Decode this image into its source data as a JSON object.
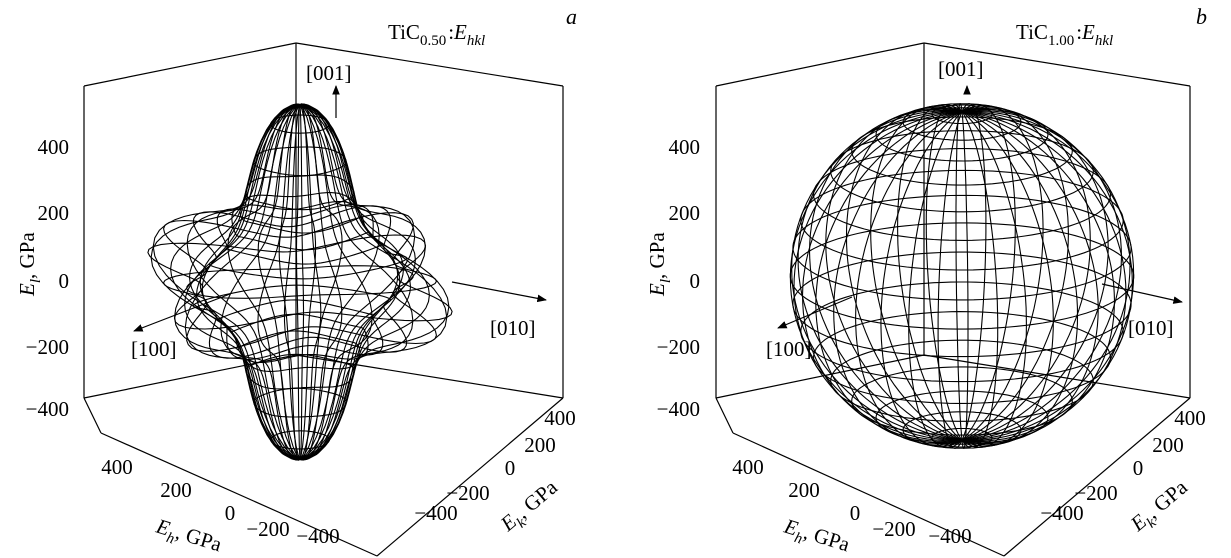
{
  "chart_data": [
    {
      "type": "surface",
      "panel_letter": "a",
      "title": {
        "base": "TiC",
        "sub": "0.50",
        "colon": ":",
        "E": "E",
        "Esub": "hkl"
      },
      "zlabel": {
        "E": "E",
        "sub": "l",
        "unit": ", GPa"
      },
      "xlabel": {
        "E": "E",
        "sub": "h",
        "unit": ", GPa"
      },
      "ylabel": {
        "E": "E",
        "sub": "k",
        "unit": ", GPa"
      },
      "z_ticks": [
        "400",
        "200",
        "0",
        "−200",
        "−400"
      ],
      "x_ticks": [
        "400",
        "200",
        "0",
        "−200",
        "−400"
      ],
      "y_ticks": [
        "400",
        "200",
        "0",
        "−200",
        "−400"
      ],
      "directions": {
        "top": "[001]",
        "left": "[100]",
        "right": "[010]"
      },
      "surface": {
        "E_001": 460,
        "E_111": 210,
        "anisotropic": true
      }
    },
    {
      "type": "surface",
      "panel_letter": "b",
      "title": {
        "base": "TiC",
        "sub": "1.00",
        "colon": ":",
        "E": "E",
        "Esub": "hkl"
      },
      "zlabel": {
        "E": "E",
        "sub": "l",
        "unit": ", GPa"
      },
      "xlabel": {
        "E": "E",
        "sub": "h",
        "unit": ", GPa"
      },
      "ylabel": {
        "E": "E",
        "sub": "k",
        "unit": ", GPa"
      },
      "z_ticks": [
        "400",
        "200",
        "0",
        "−200",
        "−400"
      ],
      "x_ticks": [
        "400",
        "200",
        "0",
        "−200",
        "−400"
      ],
      "y_ticks": [
        "400",
        "200",
        "0",
        "−200",
        "−400"
      ],
      "directions": {
        "top": "[001]",
        "left": "[100]",
        "right": "[010]"
      },
      "surface": {
        "E_001": 480,
        "E_111": 460,
        "anisotropic": false
      }
    }
  ]
}
